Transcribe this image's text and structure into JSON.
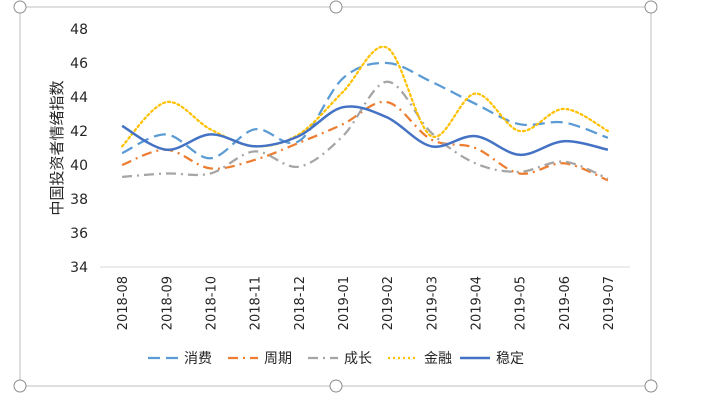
{
  "chart_data": {
    "type": "line",
    "title": "",
    "xlabel": "",
    "ylabel": "中国投资者情绪指数",
    "ylim": [
      34,
      48
    ],
    "yticks": [
      34,
      36,
      38,
      40,
      42,
      44,
      46,
      48
    ],
    "categories": [
      "2018-08",
      "2018-09",
      "2018-10",
      "2018-11",
      "2018-12",
      "2019-01",
      "2019-02",
      "2019-03",
      "2019-04",
      "2019-05",
      "2019-06",
      "2019-07"
    ],
    "grid": false,
    "legend_position": "bottom",
    "series": [
      {
        "name": "消费",
        "color": "#5B9BD5",
        "dash": "long-dash",
        "values": [
          40.7,
          41.8,
          40.4,
          42.1,
          41.4,
          45.1,
          46.0,
          44.9,
          43.6,
          42.4,
          42.5,
          41.6
        ]
      },
      {
        "name": "周期",
        "color": "#ED7D31",
        "dash": "dash-dot",
        "values": [
          40.0,
          40.9,
          39.8,
          40.3,
          41.3,
          42.4,
          43.7,
          41.5,
          41.0,
          39.5,
          40.1,
          39.1
        ]
      },
      {
        "name": "成长",
        "color": "#A5A5A5",
        "dash": "dash-dot",
        "values": [
          39.3,
          39.5,
          39.5,
          40.8,
          39.9,
          41.7,
          44.9,
          41.9,
          40.1,
          39.6,
          40.2,
          39.2
        ]
      },
      {
        "name": "金融",
        "color": "#FFC000",
        "dash": "dot",
        "values": [
          41.1,
          43.7,
          42.1,
          41.1,
          41.8,
          44.3,
          46.9,
          41.7,
          44.2,
          42.0,
          43.3,
          42.0
        ]
      },
      {
        "name": "稳定",
        "color": "#4472C4",
        "dash": "solid",
        "values": [
          42.3,
          40.9,
          41.8,
          41.1,
          41.7,
          43.4,
          42.8,
          41.1,
          41.7,
          40.6,
          41.4,
          40.9
        ]
      }
    ]
  }
}
